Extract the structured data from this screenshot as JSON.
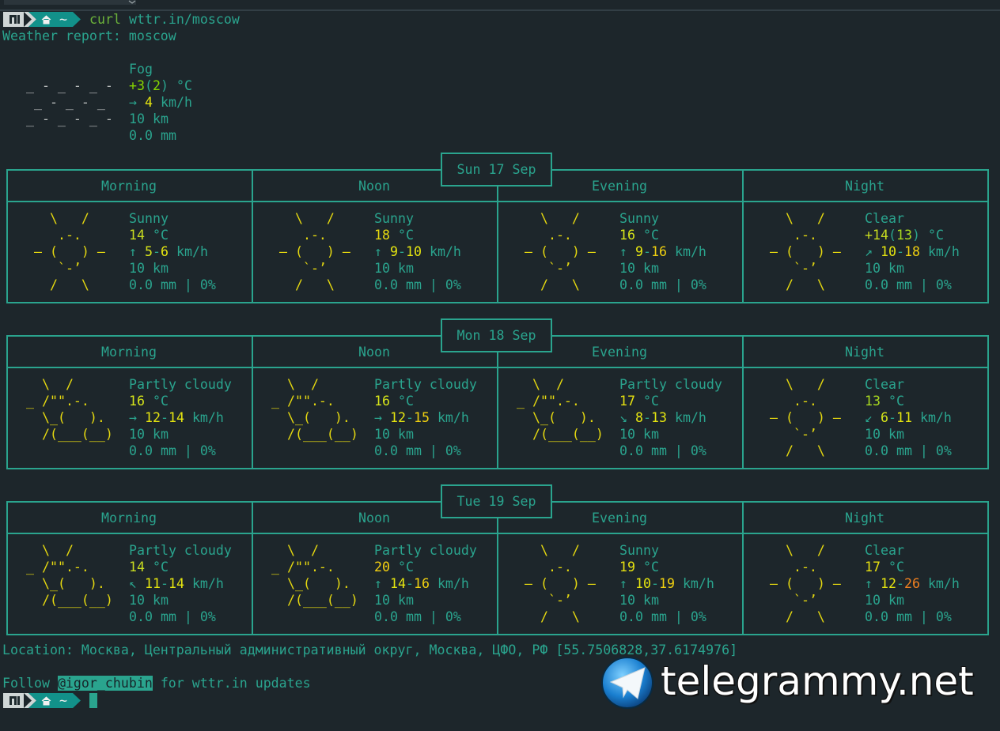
{
  "theme": {
    "text": "#2aa48e",
    "border": "#2aa48e",
    "background": "#1d262b"
  },
  "prompt": {
    "home": "~",
    "command": [
      {
        "t": "curl",
        "c": "#6cb33a"
      },
      {
        "t": " wttr.in/moscow"
      }
    ]
  },
  "title": "Weather report: moscow",
  "current": {
    "icon": {
      "color": "#b8bcbc",
      "lines": [
        "   _ - _ - _ -",
        "    _ - _ - _",
        "   _ - _ - _ -"
      ]
    },
    "lines": [
      [
        {
          "t": "Fog"
        }
      ],
      [
        {
          "t": "+3",
          "c": "#87d700"
        },
        {
          "t": "("
        },
        {
          "t": "2",
          "c": "#87d700"
        },
        {
          "t": ")"
        },
        {
          "t": " °C"
        }
      ],
      [
        {
          "t": "→ "
        },
        {
          "t": "4",
          "c": "#e5e510"
        },
        {
          "t": " km/h"
        }
      ],
      [
        {
          "t": "10 km"
        }
      ],
      [
        {
          "t": "0.0 mm"
        }
      ]
    ]
  },
  "days": [
    {
      "date": "Sun 17 Sep",
      "periods": [
        {
          "name": "Morning",
          "icon": {
            "color": "#e5d810",
            "lines": [
              "    \\   /",
              "     .-.",
              "  ― (   ) ―",
              "     `-’",
              "    /   \\"
            ]
          },
          "lines": [
            [
              {
                "t": "Sunny"
              }
            ],
            [
              {
                "t": "14",
                "c": "#c8dc20"
              },
              {
                "t": " °C"
              }
            ],
            [
              {
                "t": "↑ "
              },
              {
                "t": "5",
                "c": "#d7e51a"
              },
              {
                "t": "-"
              },
              {
                "t": "6",
                "c": "#e5e510"
              },
              {
                "t": " km/h"
              }
            ],
            [
              {
                "t": "10 km"
              }
            ],
            [
              {
                "t": "0.0 mm | 0%"
              }
            ]
          ]
        },
        {
          "name": "Noon",
          "icon": {
            "color": "#e5d810",
            "lines": [
              "    \\   /",
              "     .-.",
              "  ― (   ) ―",
              "     `-’",
              "    /   \\"
            ]
          },
          "lines": [
            [
              {
                "t": "Sunny"
              }
            ],
            [
              {
                "t": "18",
                "c": "#e5d810"
              },
              {
                "t": " °C"
              }
            ],
            [
              {
                "t": "↑ "
              },
              {
                "t": "9",
                "c": "#e5e510"
              },
              {
                "t": "-"
              },
              {
                "t": "10",
                "c": "#e5e510"
              },
              {
                "t": " km/h"
              }
            ],
            [
              {
                "t": "10 km"
              }
            ],
            [
              {
                "t": "0.0 mm | 0%"
              }
            ]
          ]
        },
        {
          "name": "Evening",
          "icon": {
            "color": "#e5d810",
            "lines": [
              "    \\   /",
              "     .-.",
              "  ― (   ) ―",
              "     `-’",
              "    /   \\"
            ]
          },
          "lines": [
            [
              {
                "t": "Sunny"
              }
            ],
            [
              {
                "t": "16",
                "c": "#d7e51a"
              },
              {
                "t": " °C"
              }
            ],
            [
              {
                "t": "↑ "
              },
              {
                "t": "9",
                "c": "#e5e510"
              },
              {
                "t": "-"
              },
              {
                "t": "16",
                "c": "#f0d010"
              },
              {
                "t": " km/h"
              }
            ],
            [
              {
                "t": "10 km"
              }
            ],
            [
              {
                "t": "0.0 mm | 0%"
              }
            ]
          ]
        },
        {
          "name": "Night",
          "icon": {
            "color": "#e5d810",
            "lines": [
              "    \\   /",
              "     .-.",
              "  ― (   ) ―",
              "     `-’",
              "    /   \\"
            ]
          },
          "lines": [
            [
              {
                "t": "Clear"
              }
            ],
            [
              {
                "t": "+14",
                "c": "#c8dc20"
              },
              {
                "t": "("
              },
              {
                "t": "13",
                "c": "#a8d820"
              },
              {
                "t": ")"
              },
              {
                "t": " °C"
              }
            ],
            [
              {
                "t": "↗ "
              },
              {
                "t": "10",
                "c": "#e5e510"
              },
              {
                "t": "-"
              },
              {
                "t": "18",
                "c": "#f0d010"
              },
              {
                "t": " km/h"
              }
            ],
            [
              {
                "t": "10 km"
              }
            ],
            [
              {
                "t": "0.0 mm | 0%"
              }
            ]
          ]
        }
      ]
    },
    {
      "date": "Mon 18 Sep",
      "periods": [
        {
          "name": "Morning",
          "icon": {
            "color": "#e5d810",
            "lines": [
              "   \\  /",
              " _ /\"\".-.",
              "   \\_(   ).",
              "   /(___(__)"
            ]
          },
          "lines": [
            [
              {
                "t": "Partly cloudy"
              }
            ],
            [
              {
                "t": "16",
                "c": "#d7e51a"
              },
              {
                "t": " °C"
              }
            ],
            [
              {
                "t": "→ "
              },
              {
                "t": "12",
                "c": "#e5e510"
              },
              {
                "t": "-"
              },
              {
                "t": "14",
                "c": "#e5e510"
              },
              {
                "t": " km/h"
              }
            ],
            [
              {
                "t": "10 km"
              }
            ],
            [
              {
                "t": "0.0 mm | 0%"
              }
            ]
          ]
        },
        {
          "name": "Noon",
          "icon": {
            "color": "#e5d810",
            "lines": [
              "   \\  /",
              " _ /\"\".-.",
              "   \\_(   ).",
              "   /(___(__)"
            ]
          },
          "lines": [
            [
              {
                "t": "Partly cloudy"
              }
            ],
            [
              {
                "t": "16",
                "c": "#d7e51a"
              },
              {
                "t": " °C"
              }
            ],
            [
              {
                "t": "→ "
              },
              {
                "t": "12",
                "c": "#e5e510"
              },
              {
                "t": "-"
              },
              {
                "t": "15",
                "c": "#f0d010"
              },
              {
                "t": " km/h"
              }
            ],
            [
              {
                "t": "10 km"
              }
            ],
            [
              {
                "t": "0.0 mm | 0%"
              }
            ]
          ]
        },
        {
          "name": "Evening",
          "icon": {
            "color": "#e5d810",
            "lines": [
              "   \\  /",
              " _ /\"\".-.",
              "   \\_(   ).",
              "   /(___(__)"
            ]
          },
          "lines": [
            [
              {
                "t": "Partly cloudy"
              }
            ],
            [
              {
                "t": "17",
                "c": "#e5e010"
              },
              {
                "t": " °C"
              }
            ],
            [
              {
                "t": "↘ "
              },
              {
                "t": "8",
                "c": "#e5e510"
              },
              {
                "t": "-"
              },
              {
                "t": "13",
                "c": "#e5e510"
              },
              {
                "t": " km/h"
              }
            ],
            [
              {
                "t": "10 km"
              }
            ],
            [
              {
                "t": "0.0 mm | 0%"
              }
            ]
          ]
        },
        {
          "name": "Night",
          "icon": {
            "color": "#e5d810",
            "lines": [
              "    \\   /",
              "     .-.",
              "  ― (   ) ―",
              "     `-’",
              "    /   \\"
            ]
          },
          "lines": [
            [
              {
                "t": "Clear"
              }
            ],
            [
              {
                "t": "13",
                "c": "#a8d820"
              },
              {
                "t": " °C"
              }
            ],
            [
              {
                "t": "↙ "
              },
              {
                "t": "6",
                "c": "#d7e51a"
              },
              {
                "t": "-"
              },
              {
                "t": "11",
                "c": "#e5e510"
              },
              {
                "t": " km/h"
              }
            ],
            [
              {
                "t": "10 km"
              }
            ],
            [
              {
                "t": "0.0 mm | 0%"
              }
            ]
          ]
        }
      ]
    },
    {
      "date": "Tue 19 Sep",
      "periods": [
        {
          "name": "Morning",
          "icon": {
            "color": "#e5d810",
            "lines": [
              "   \\  /",
              " _ /\"\".-.",
              "   \\_(   ).",
              "   /(___(__)"
            ]
          },
          "lines": [
            [
              {
                "t": "Partly cloudy"
              }
            ],
            [
              {
                "t": "14",
                "c": "#c8dc20"
              },
              {
                "t": " °C"
              }
            ],
            [
              {
                "t": "↖ "
              },
              {
                "t": "11",
                "c": "#e5e510"
              },
              {
                "t": "-"
              },
              {
                "t": "14",
                "c": "#e5e510"
              },
              {
                "t": " km/h"
              }
            ],
            [
              {
                "t": "10 km"
              }
            ],
            [
              {
                "t": "0.0 mm | 0%"
              }
            ]
          ]
        },
        {
          "name": "Noon",
          "icon": {
            "color": "#e5d810",
            "lines": [
              "   \\  /",
              " _ /\"\".-.",
              "   \\_(   ).",
              "   /(___(__)"
            ]
          },
          "lines": [
            [
              {
                "t": "Partly cloudy"
              }
            ],
            [
              {
                "t": "20",
                "c": "#f5d010"
              },
              {
                "t": " °C"
              }
            ],
            [
              {
                "t": "↑ "
              },
              {
                "t": "14",
                "c": "#e5e510"
              },
              {
                "t": "-"
              },
              {
                "t": "16",
                "c": "#f0d010"
              },
              {
                "t": " km/h"
              }
            ],
            [
              {
                "t": "10 km"
              }
            ],
            [
              {
                "t": "0.0 mm | 0%"
              }
            ]
          ]
        },
        {
          "name": "Evening",
          "icon": {
            "color": "#e5d810",
            "lines": [
              "    \\   /",
              "     .-.",
              "  ― (   ) ―",
              "     `-’",
              "    /   \\"
            ]
          },
          "lines": [
            [
              {
                "t": "Sunny"
              }
            ],
            [
              {
                "t": "19",
                "c": "#e5e010"
              },
              {
                "t": " °C"
              }
            ],
            [
              {
                "t": "↑ "
              },
              {
                "t": "10",
                "c": "#e5e510"
              },
              {
                "t": "-"
              },
              {
                "t": "19",
                "c": "#f0d010"
              },
              {
                "t": " km/h"
              }
            ],
            [
              {
                "t": "10 km"
              }
            ],
            [
              {
                "t": "0.0 mm | 0%"
              }
            ]
          ]
        },
        {
          "name": "Night",
          "icon": {
            "color": "#e5d810",
            "lines": [
              "    \\   /",
              "     .-.",
              "  ― (   ) ―",
              "     `-’",
              "    /   \\"
            ]
          },
          "lines": [
            [
              {
                "t": "Clear"
              }
            ],
            [
              {
                "t": "17",
                "c": "#e5e010"
              },
              {
                "t": " °C"
              }
            ],
            [
              {
                "t": "↑ "
              },
              {
                "t": "12",
                "c": "#e5e510"
              },
              {
                "t": "-"
              },
              {
                "t": "26",
                "c": "#f08020"
              },
              {
                "t": " km/h"
              }
            ],
            [
              {
                "t": "10 km"
              }
            ],
            [
              {
                "t": "0.0 mm | 0%"
              }
            ]
          ]
        }
      ]
    }
  ],
  "location": "Location: Москва, Центральный административный округ, Москва, ЦФО, РФ [55.7506828,37.6174976]",
  "follow": [
    {
      "t": "Follow "
    },
    {
      "t": "@igor_chubin",
      "c": "#17252a",
      "bg": "#2aa48e"
    },
    {
      "t": " for wttr.in updates"
    }
  ],
  "prompt2": {
    "home": "~"
  },
  "watermark": "telegrammy.net"
}
